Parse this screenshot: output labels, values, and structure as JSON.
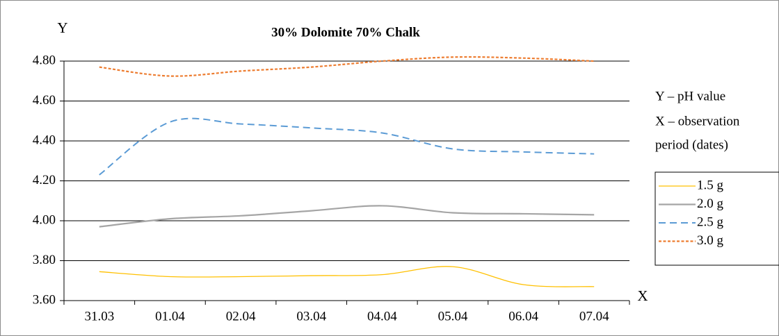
{
  "chart_data": {
    "type": "line",
    "title": "30% Dolomite 70% Chalk",
    "y_axis_label": "Y",
    "x_axis_label": "X",
    "annotations": [
      "Y – pH value",
      "X – observation",
      "period (dates)"
    ],
    "categories": [
      "31.03",
      "01.04",
      "02.04",
      "03.04",
      "04.04",
      "05.04",
      "06.04",
      "07.04"
    ],
    "series": [
      {
        "name": "1.5 g",
        "color": "#ffc000",
        "line_style": "solid",
        "line_width": 1.3,
        "values": [
          3.745,
          3.72,
          3.72,
          3.725,
          3.73,
          3.77,
          3.68,
          3.67
        ]
      },
      {
        "name": "2.0 g",
        "color": "#a5a5a5",
        "line_style": "solid",
        "line_width": 2.2,
        "values": [
          3.97,
          4.01,
          4.025,
          4.05,
          4.075,
          4.04,
          4.035,
          4.03
        ]
      },
      {
        "name": "2.5 g",
        "color": "#5b9bd5",
        "line_style": "dashed",
        "line_width": 2,
        "values": [
          4.23,
          4.495,
          4.485,
          4.465,
          4.44,
          4.36,
          4.345,
          4.335
        ]
      },
      {
        "name": "3.0 g",
        "color": "#ed7d31",
        "line_style": "dotted",
        "line_width": 2.2,
        "values": [
          4.77,
          4.725,
          4.75,
          4.77,
          4.8,
          4.82,
          4.815,
          4.8
        ]
      }
    ],
    "ylim": [
      3.6,
      4.8
    ],
    "yticks": [
      {
        "value": 3.6,
        "label": "3.60"
      },
      {
        "value": 3.8,
        "label": "3.80"
      },
      {
        "value": 4.0,
        "label": "4.00"
      },
      {
        "value": 4.2,
        "label": "4.20"
      },
      {
        "value": 4.4,
        "label": "4.40"
      },
      {
        "value": 4.6,
        "label": "4.60"
      },
      {
        "value": 4.8,
        "label": "4.80"
      }
    ],
    "grid": true,
    "legend": "right"
  }
}
